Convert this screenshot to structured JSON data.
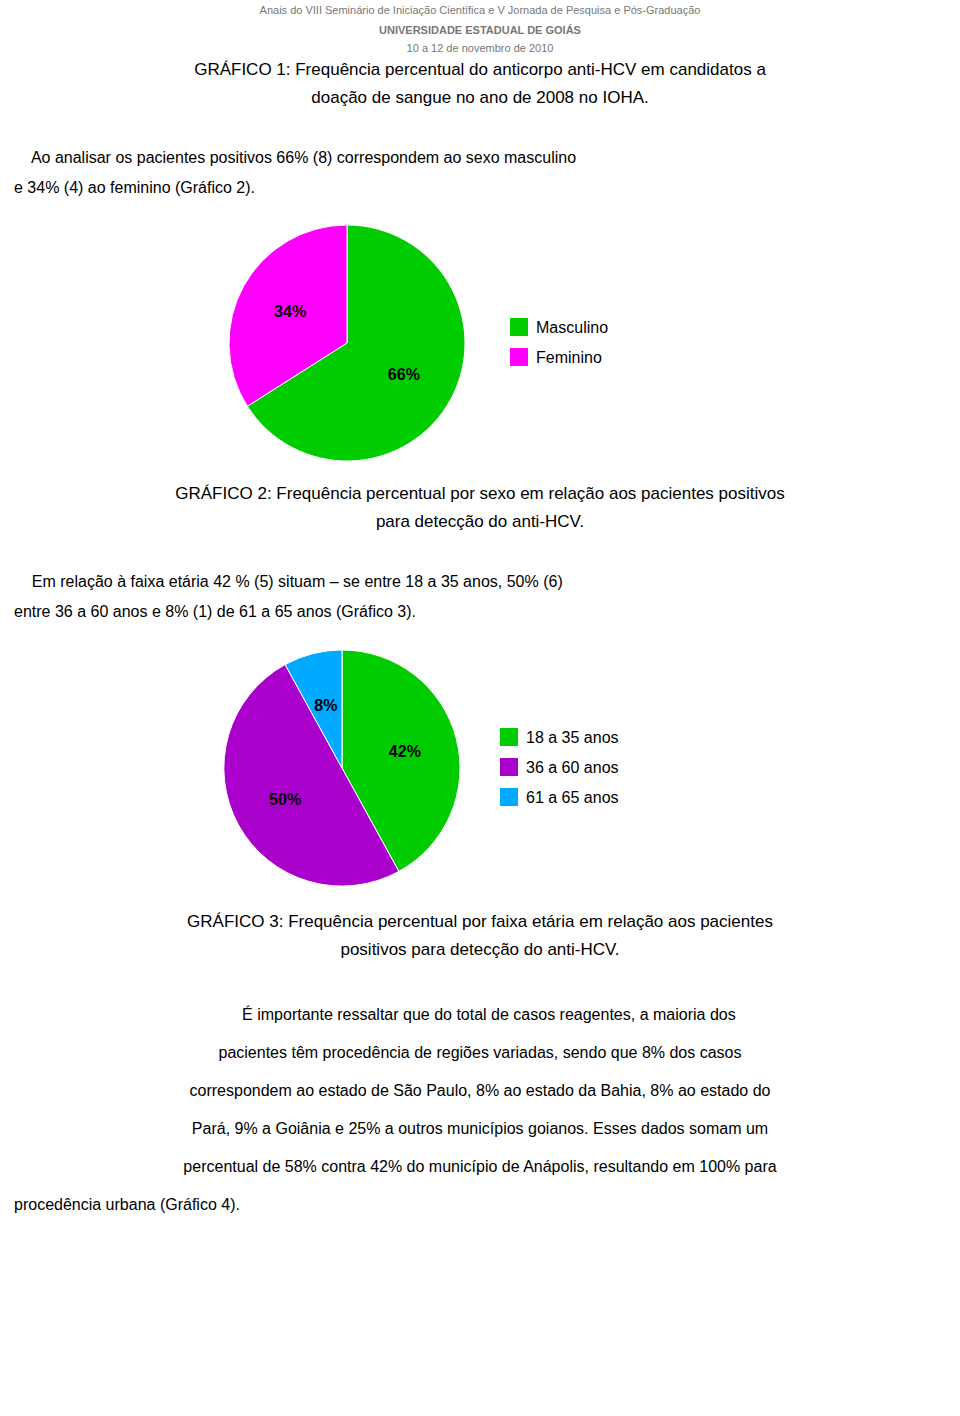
{
  "header": [
    "Anais do VIII Seminário de Iniciação Científica e V Jornada de Pesquisa e Pós-Graduação",
    "UNIVERSIDADE ESTADUAL DE GOIÁS",
    "10 a 12 de novembro de 2010"
  ],
  "captions": [
    [
      "GRÁFICO 1: Frequência percentual do anticorpo anti-HCV em candidatos a",
      "doação de sangue no ano de 2008 no IOHA."
    ],
    [
      "GRÁFICO 2: Frequência percentual por sexo em relação aos pacientes positivos",
      "para detecção do anti-HCV."
    ],
    [
      "GRÁFICO 3: Frequência percentual por faixa etária em relação aos pacientes",
      "positivos para detecção do anti-HCV."
    ]
  ],
  "paragraphs": [
    [
      "    Ao analisar os pacientes positivos 66% (8) correspondem ao sexo masculino",
      "e 34% (4) ao feminino (Gráfico 2)."
    ],
    [
      "    Em relação à faixa etária 42 % (5) situam – se entre 18 a 35 anos, 50% (6)",
      "entre 36 a 60 anos e 8% (1) de 61 a 65 anos (Gráfico 3)."
    ],
    [
      "    É importante ressaltar que do total de casos reagentes, a maioria dos",
      "pacientes têm procedência de regiões variadas, sendo que 8% dos casos",
      "correspondem ao estado de São Paulo, 8% ao estado da Bahia, 8% ao estado do",
      "Pará, 9% a Goiânia e 25% a outros municípios goianos. Esses dados somam um",
      "percentual de 58% contra 42% do município de Anápolis, resultando em 100% para",
      "procedência urbana (Gráfico 4)."
    ]
  ],
  "chart_data": [
    {
      "type": "pie",
      "categories": [
        "Masculino",
        "Feminino"
      ],
      "values": [
        66,
        34
      ],
      "value_labels": [
        "66%",
        "34%"
      ],
      "colors": [
        "#00CC00",
        "#FF00FF"
      ],
      "data_labels": true,
      "legend": "right"
    },
    {
      "type": "pie",
      "categories": [
        "18 a 35 anos",
        "36 a 60 anos",
        "61 a 65 anos"
      ],
      "values": [
        42,
        50,
        8
      ],
      "value_labels": [
        "42%",
        "50%",
        "8%"
      ],
      "colors": [
        "#00CC00",
        "#AA00CC",
        "#00AAFF"
      ],
      "data_labels": true,
      "legend": "right"
    }
  ]
}
